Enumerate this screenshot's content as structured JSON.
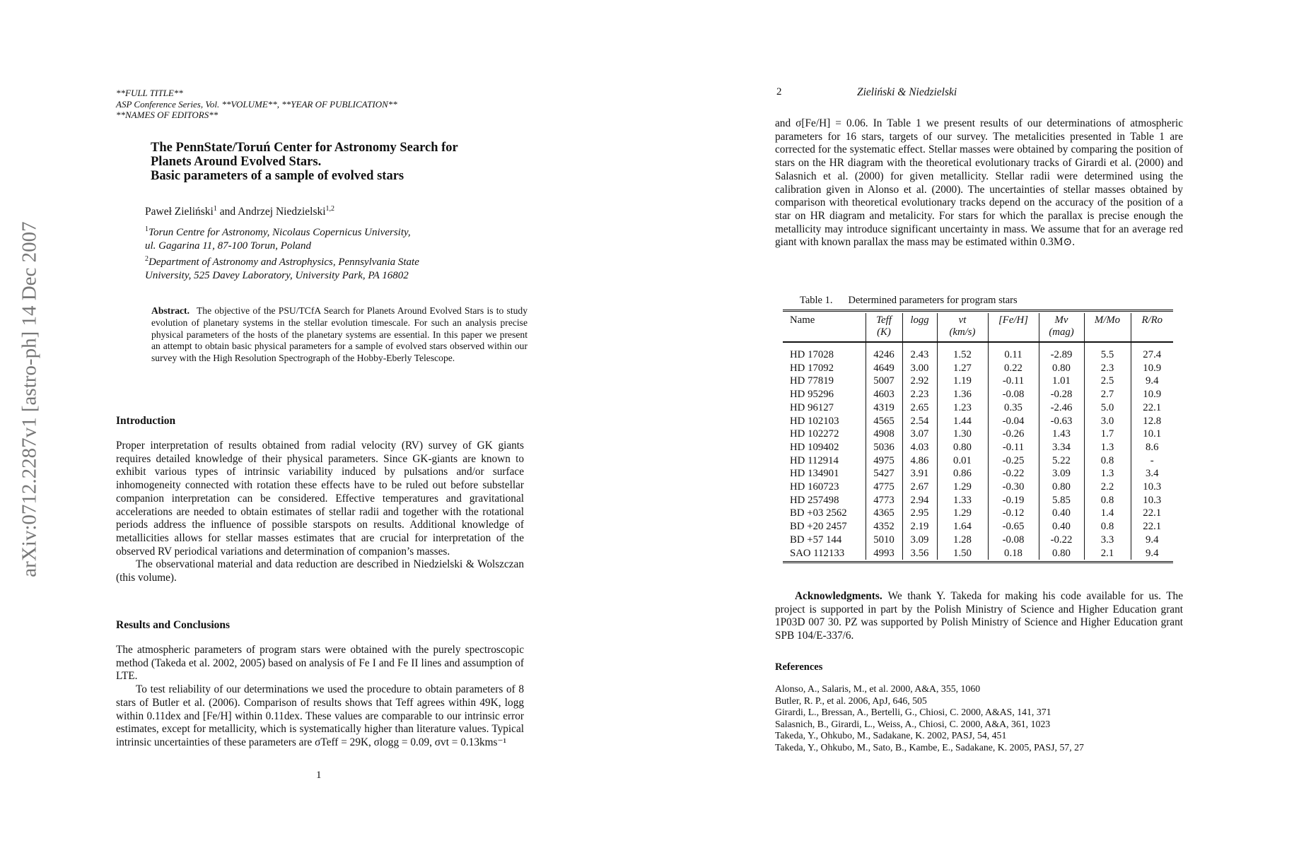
{
  "sidebar": {
    "arxiv_id": "arXiv:0712.2287v1  [astro-ph]  14 Dec 2007"
  },
  "page1": {
    "header": [
      "**FULL TITLE**",
      "ASP Conference Series, Vol. **VOLUME**, **YEAR OF PUBLICATION**",
      "**NAMES OF EDITORS**"
    ],
    "title": [
      "The PennState/Toruń Center for Astronomy Search for",
      "Planets Around Evolved Stars.",
      "Basic parameters of a sample of evolved stars"
    ],
    "authors": {
      "a1": "Paweł Zieliński",
      "a1_sup": "1",
      "and": " and ",
      "a2": "Andrzej Niedzielski",
      "a2_sup": "1,2"
    },
    "affiliations": [
      {
        "sup": "1",
        "line1": "Torun Centre for Astronomy, Nicolaus Copernicus University,",
        "line2": "ul. Gagarina 11, 87-100 Torun, Poland"
      },
      {
        "sup": "2",
        "line1": "Department of Astronomy and Astrophysics, Pennsylvania State",
        "line2": "University, 525 Davey Laboratory, University Park, PA 16802"
      }
    ],
    "abstract_label": "Abstract.",
    "abstract": "The objective of the PSU/TCfA Search for Planets Around Evolved Stars is to study evolution of planetary systems in the stellar evolution timescale. For such an analysis precise physical parameters of the hosts of the planetary systems are essential. In this paper we present an attempt to obtain basic physical parameters for a sample of evolved stars observed within our survey with the High Resolution Spectrograph of the Hobby-Eberly Telescope.",
    "intro_heading": "Introduction",
    "intro_p1": "Proper interpretation of results obtained from radial velocity (RV) survey of GK giants requires detailed knowledge of their physical parameters. Since GK-giants are known to exhibit various types of intrinsic variability induced by pulsations and/or surface inhomogeneity connected with rotation these effects have to be ruled out before substellar companion interpretation can be considered. Effective temperatures and gravitational accelerations are needed to obtain estimates of stellar radii and together with the rotational periods address the influence of possible starspots on results. Additional knowledge of metallicities allows for stellar masses estimates that are crucial for interpretation of the observed RV periodical variations and determination of companion’s masses.",
    "intro_p2": "The observational material and data reduction are described in Niedzielski & Wolszczan (this volume).",
    "results_heading": "Results and Conclusions",
    "results_p1": "The atmospheric parameters of program stars were obtained with the purely spectroscopic method (Takeda et al. 2002, 2005) based on analysis of Fe I and Fe II lines and assumption of LTE.",
    "results_p2": "To test reliability of our determinations we used the procedure to obtain parameters of 8 stars of Butler et al. (2006). Comparison of results shows that Teff agrees within 49K, logg within 0.11dex and [Fe/H] within 0.11dex. These values are comparable to our intrinsic error estimates, except for metallicity, which is systematically higher than literature values. Typical intrinsic uncertainties of these parameters are σTeff = 29K, σlogg = 0.09, σvt = 0.13kms⁻¹",
    "page_number": "1"
  },
  "page2": {
    "page_number": "2",
    "running_head": "Zieliński & Niedzielski",
    "para": "and σ[Fe/H] = 0.06. In Table 1 we present results of our determinations of atmospheric parameters for 16 stars, targets of our survey. The metalicities presented in Table 1 are corrected for the systematic effect. Stellar masses were obtained by comparing the position of stars on the HR diagram with the theoretical evolutionary tracks of Girardi et al. (2000) and Salasnich et al. (2000) for given metallicity. Stellar radii were determined using the calibration given in Alonso et al. (2000). The uncertainties of stellar masses obtained by comparison with theoretical evolutionary tracks depend on the accuracy of the position of a star on HR diagram and metalicity. For stars for which the parallax is precise enough the metallicity may introduce significant uncertainty in mass. We assume that for an average red giant with known parallax the mass may be estimated within 0.3M⊙.",
    "table": {
      "caption_label": "Table 1.",
      "caption": "Determined parameters for program stars",
      "headers": [
        {
          "l1": "Name",
          "l2": ""
        },
        {
          "l1": "Teff",
          "l2": "(K)"
        },
        {
          "l1": "logg",
          "l2": ""
        },
        {
          "l1": "vt",
          "l2": "(km/s)"
        },
        {
          "l1": "[Fe/H]",
          "l2": ""
        },
        {
          "l1": "Mv",
          "l2": "(mag)"
        },
        {
          "l1": "M/Mo",
          "l2": ""
        },
        {
          "l1": "R/Ro",
          "l2": ""
        }
      ],
      "rows": [
        [
          "HD 17028",
          "4246",
          "2.43",
          "1.52",
          "0.11",
          "-2.89",
          "5.5",
          "27.4"
        ],
        [
          "HD 17092",
          "4649",
          "3.00",
          "1.27",
          "0.22",
          "0.80",
          "2.3",
          "10.9"
        ],
        [
          "HD 77819",
          "5007",
          "2.92",
          "1.19",
          "-0.11",
          "1.01",
          "2.5",
          "9.4"
        ],
        [
          "HD 95296",
          "4603",
          "2.23",
          "1.36",
          "-0.08",
          "-0.28",
          "2.7",
          "10.9"
        ],
        [
          "HD 96127",
          "4319",
          "2.65",
          "1.23",
          "0.35",
          "-2.46",
          "5.0",
          "22.1"
        ],
        [
          "HD 102103",
          "4565",
          "2.54",
          "1.44",
          "-0.04",
          "-0.63",
          "3.0",
          "12.8"
        ],
        [
          "HD 102272",
          "4908",
          "3.07",
          "1.30",
          "-0.26",
          "1.43",
          "1.7",
          "10.1"
        ],
        [
          "HD 109402",
          "5036",
          "4.03",
          "0.80",
          "-0.11",
          "3.34",
          "1.3",
          "8.6"
        ],
        [
          "HD 112914",
          "4975",
          "4.86",
          "0.01",
          "-0.25",
          "5.22",
          "0.8",
          "-"
        ],
        [
          "HD 134901",
          "5427",
          "3.91",
          "0.86",
          "-0.22",
          "3.09",
          "1.3",
          "3.4"
        ],
        [
          "HD 160723",
          "4775",
          "2.67",
          "1.29",
          "-0.30",
          "0.80",
          "2.2",
          "10.3"
        ],
        [
          "HD 257498",
          "4773",
          "2.94",
          "1.33",
          "-0.19",
          "5.85",
          "0.8",
          "10.3"
        ],
        [
          "BD +03 2562",
          "4365",
          "2.95",
          "1.29",
          "-0.12",
          "0.40",
          "1.4",
          "22.1"
        ],
        [
          "BD +20 2457",
          "4352",
          "2.19",
          "1.64",
          "-0.65",
          "0.40",
          "0.8",
          "22.1"
        ],
        [
          "BD +57 144",
          "5010",
          "3.09",
          "1.28",
          "-0.08",
          "-0.22",
          "3.3",
          "9.4"
        ],
        [
          "SAO 112133",
          "4993",
          "3.56",
          "1.50",
          "0.18",
          "0.80",
          "2.1",
          "9.4"
        ]
      ]
    },
    "ack_label": "Acknowledgments.",
    "ack": "We thank Y. Takeda for making his code available for us. The project is supported in part by the Polish Ministry of Science and Higher Education grant 1P03D 007 30. PZ was supported by Polish Ministry of Science and Higher Education grant SPB 104/E-337/6.",
    "refs_heading": "References",
    "refs": [
      "Alonso, A., Salaris, M., et al. 2000, A&A, 355, 1060",
      "Butler, R. P., et al. 2006, ApJ, 646, 505",
      "Girardi, L., Bressan, A., Bertelli, G., Chiosi, C. 2000, A&AS, 141, 371",
      "Salasnich, B., Girardi, L., Weiss, A., Chiosi, C. 2000, A&A, 361, 1023",
      "Takeda, Y., Ohkubo, M., Sadakane, K. 2002, PASJ, 54, 451",
      "Takeda, Y., Ohkubo, M., Sato, B., Kambe, E., Sadakane, K. 2005, PASJ, 57, 27"
    ]
  }
}
